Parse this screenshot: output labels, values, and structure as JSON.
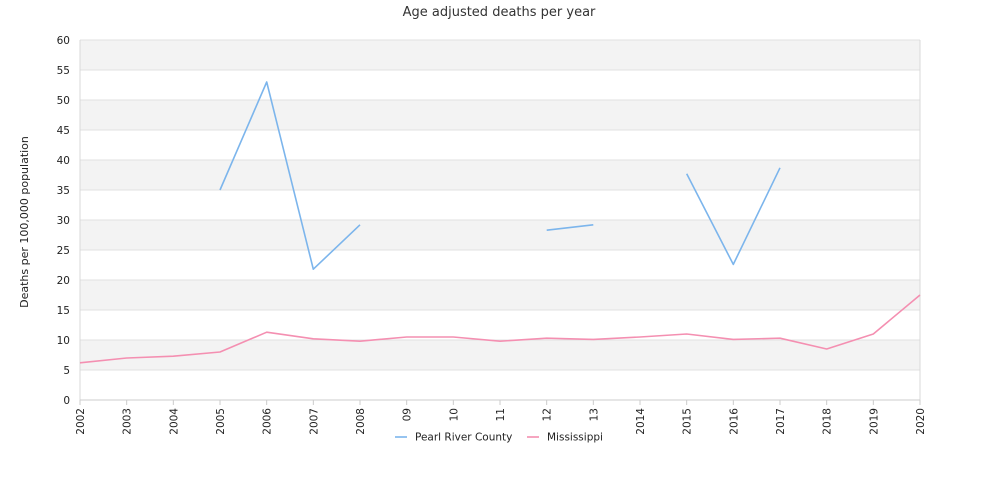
{
  "chart_data": {
    "type": "line",
    "title": "Age adjusted deaths per year",
    "ylabel": "Deaths per 100,000 population",
    "xlabel": "",
    "ylim": [
      0,
      60
    ],
    "ytick_step": 5,
    "x": [
      "2002",
      "2003",
      "2004",
      "2005",
      "2006",
      "2007",
      "2008",
      "09",
      "10",
      "11",
      "12",
      "13",
      "2014",
      "2015",
      "2016",
      "2017",
      "2018",
      "2019",
      "2020"
    ],
    "grid": true,
    "grid_bands": [
      "#f3f3f3",
      "#ffffff"
    ],
    "legend_position": "bottom-center",
    "series": [
      {
        "name": "Pearl River County",
        "color": "#7cb5ec",
        "values": [
          null,
          null,
          null,
          35.0,
          53.0,
          21.8,
          29.2,
          null,
          null,
          null,
          28.3,
          29.2,
          null,
          37.7,
          22.6,
          38.7,
          null,
          null,
          null
        ]
      },
      {
        "name": "Mississippi",
        "color": "#f48fb1",
        "values": [
          6.2,
          7.0,
          7.3,
          8.0,
          11.3,
          10.2,
          9.8,
          10.5,
          10.5,
          9.8,
          10.3,
          10.1,
          10.5,
          11.0,
          10.1,
          10.3,
          8.5,
          11.0,
          17.5
        ]
      }
    ]
  }
}
